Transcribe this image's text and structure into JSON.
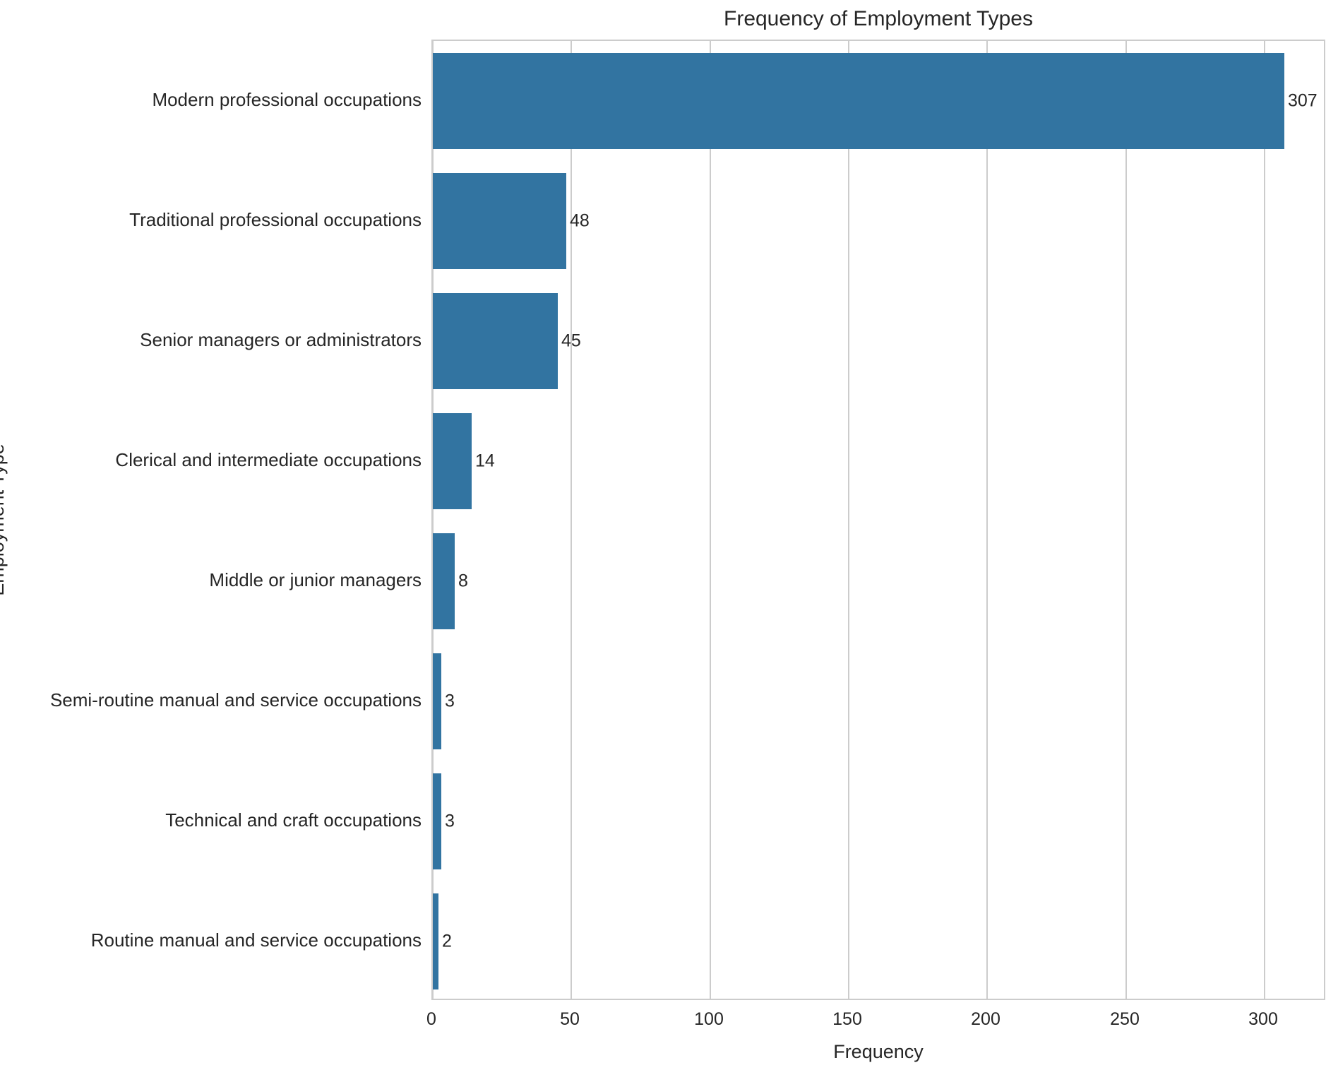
{
  "chart_data": {
    "type": "bar",
    "orientation": "horizontal",
    "title": "Frequency of Employment Types",
    "xlabel": "Frequency",
    "ylabel": "Employment Type",
    "categories": [
      "Modern professional occupations",
      "Traditional professional occupations",
      "Senior managers or administrators",
      "Clerical and intermediate occupations",
      "Middle or junior managers",
      "Semi-routine manual and service occupations",
      "Technical and craft occupations",
      "Routine manual and service occupations"
    ],
    "values": [
      307,
      48,
      45,
      14,
      8,
      3,
      3,
      2
    ],
    "bar_value_labels": [
      "307",
      "48",
      "45",
      "14",
      "8",
      "3",
      "3",
      "2"
    ],
    "x_ticks": [
      0,
      50,
      100,
      150,
      200,
      250,
      300
    ],
    "xlim": [
      0,
      322.35
    ],
    "grid": "vertical-only",
    "legend": "none",
    "colors": {
      "bar": "#3274a1",
      "grid": "#cccccc",
      "text": "#262626",
      "background": "#ffffff"
    }
  }
}
